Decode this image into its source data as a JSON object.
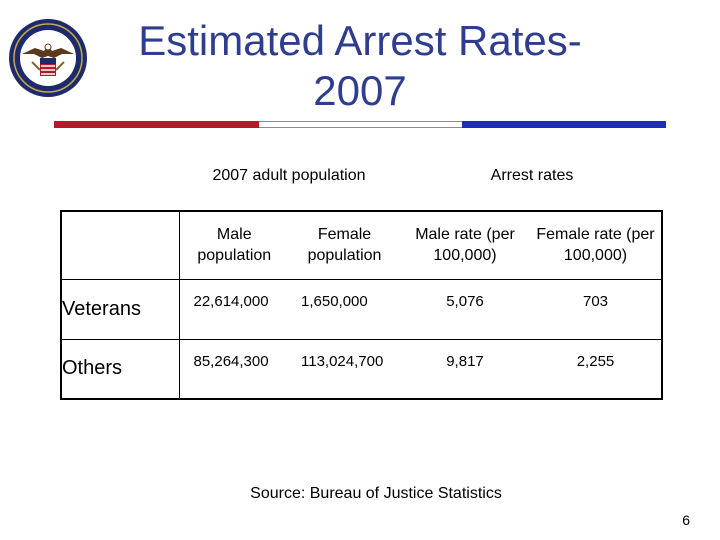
{
  "slide": {
    "title": "Estimated Arrest Rates-2007",
    "logo_icon": "department-of-veterans-affairs-seal",
    "page_number": "6",
    "source": "Source: Bureau of Justice Statistics"
  },
  "colors": {
    "title": "#2f3d8f",
    "rule_red": "#b51a2a",
    "rule_white": "#ffffff",
    "rule_blue": "#1f2fb0"
  },
  "table": {
    "group_headers": [
      "2007 adult population",
      "Arrest rates"
    ],
    "columns": [
      "",
      "Male population",
      "Female population",
      "Male rate (per 100,000)",
      "Female rate (per 100,000)"
    ],
    "rows": [
      {
        "label": "Veterans",
        "values": [
          "22,614,000",
          "1,650,000",
          "5,076",
          "703"
        ]
      },
      {
        "label": "Others",
        "values": [
          "85,264,300",
          "113,024,700",
          "9,817",
          "2,255"
        ]
      }
    ]
  }
}
